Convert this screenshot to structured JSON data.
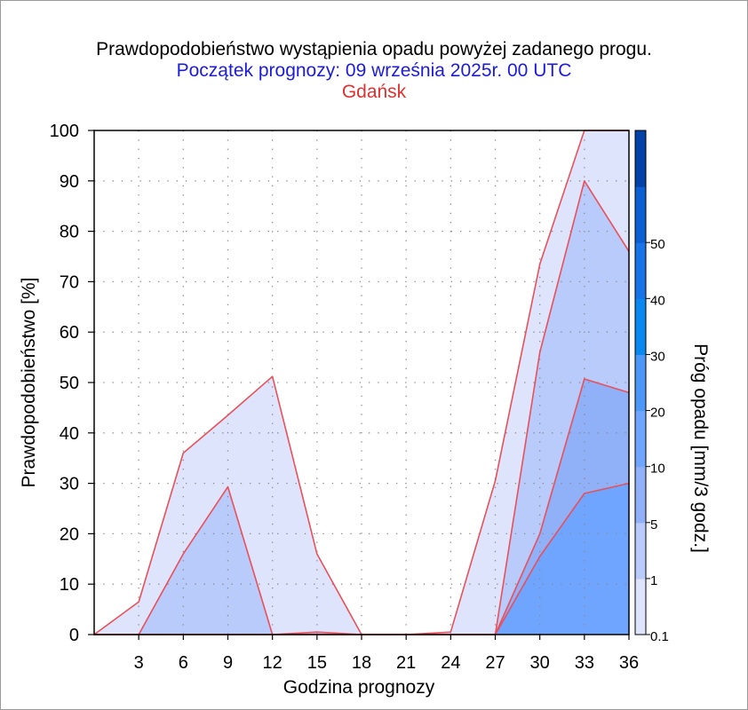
{
  "chart_data": {
    "type": "area",
    "title": "Prawdopodobieństwo wystąpienia opadu powyżej zadanego progu.",
    "subtitle": "Początek prognozy: 09 września 2025r. 00 UTC",
    "location": "Gdańsk",
    "xlabel": "Godzina prognozy",
    "ylabel": "Prawdopodobieństwo [%]",
    "xlim": [
      0,
      36
    ],
    "ylim": [
      0,
      100
    ],
    "x_ticks": [
      3,
      6,
      9,
      12,
      15,
      18,
      21,
      24,
      27,
      30,
      33,
      36
    ],
    "y_ticks": [
      0,
      10,
      20,
      30,
      40,
      50,
      60,
      70,
      80,
      90,
      100
    ],
    "grid": true,
    "x": [
      0,
      3,
      6,
      9,
      12,
      15,
      18,
      21,
      24,
      27,
      30,
      33,
      36
    ],
    "series": [
      {
        "threshold": 0.1,
        "color": "#dde4fb",
        "values": [
          0,
          6.5,
          36,
          43.5,
          51.2,
          16,
          0,
          0,
          0.5,
          30.5,
          73.5,
          100,
          100
        ]
      },
      {
        "threshold": 1,
        "color": "#b9cbfa",
        "values": [
          0,
          0,
          16,
          29.3,
          0,
          0.5,
          0,
          0,
          0,
          0,
          56,
          90,
          76
        ]
      },
      {
        "threshold": 5,
        "color": "#90b0f7",
        "values": [
          0,
          0,
          0,
          0,
          0,
          0,
          0,
          0,
          0,
          0,
          20,
          50.7,
          48
        ]
      },
      {
        "threshold": 10,
        "color": "#6fa4ff",
        "values": [
          0,
          0,
          0,
          0,
          0,
          0,
          0,
          0,
          0,
          0,
          15.5,
          28,
          30
        ]
      }
    ],
    "line_color": "#e8505a",
    "colorbar": {
      "label": "Próg opadu [mm/3 godz.]",
      "levels": [
        "0.1",
        "1",
        "5",
        "10",
        "20",
        "30",
        "40",
        "50"
      ],
      "colors": [
        "#dde4fb",
        "#b9cbfa",
        "#90b0f7",
        "#6fa4ff",
        "#4c98f8",
        "#0a88f0",
        "#1773e6",
        "#0b5fd2",
        "#0042a8"
      ]
    }
  }
}
